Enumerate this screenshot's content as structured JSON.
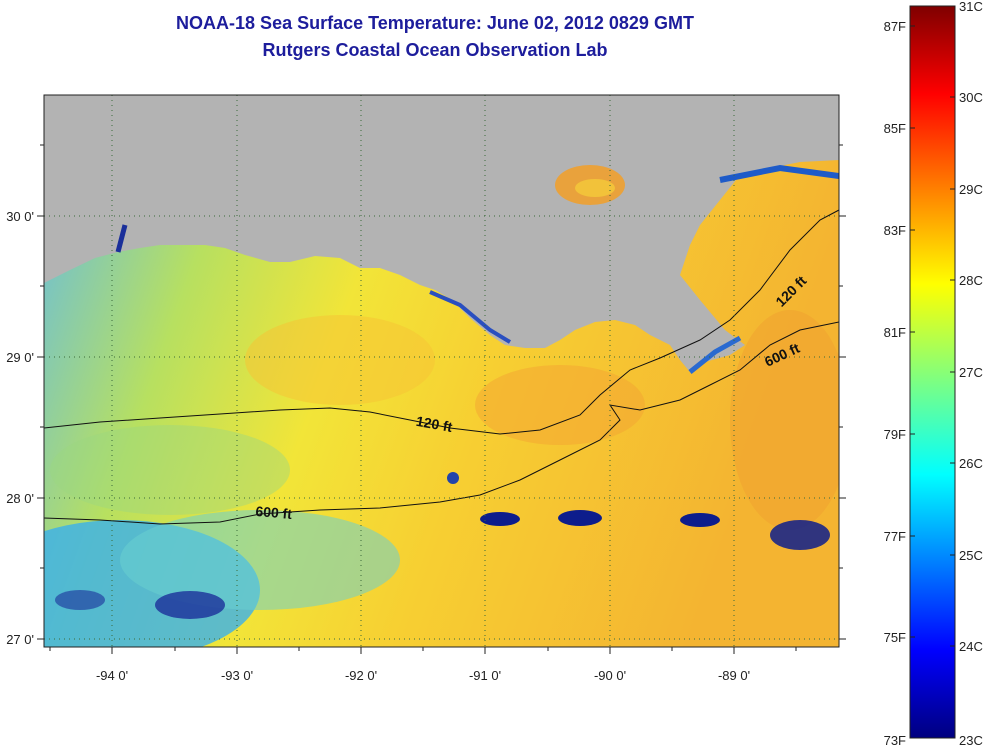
{
  "title": {
    "line1": "NOAA-18 Sea Surface Temperature:  June 02, 2012 0829 GMT",
    "line2": "Rutgers Coastal Ocean Observation Lab"
  },
  "map": {
    "lon_ticks": [
      "-94 0'",
      "-93 0'",
      "-92 0'",
      "-91 0'",
      "-90 0'",
      "-89 0'"
    ],
    "lat_ticks": [
      "30 0'",
      "29 0'",
      "28 0'",
      "27 0'"
    ],
    "contour_labels": [
      "120 ft",
      "600 ft",
      "120 ft",
      "600 ft"
    ],
    "lon_range": [
      -94.55,
      -88.05
    ],
    "lat_range": [
      26.95,
      30.85
    ],
    "land_color": "#b3b3b3"
  },
  "colorbar": {
    "fahrenheit_labels": [
      "87F",
      "85F",
      "83F",
      "81F",
      "79F",
      "77F",
      "75F",
      "73F"
    ],
    "celsius_labels": [
      "31C",
      "30C",
      "29C",
      "28C",
      "27C",
      "26C",
      "25C",
      "24C",
      "23C"
    ],
    "range_celsius": [
      23,
      31
    ],
    "colormap": "jet"
  }
}
